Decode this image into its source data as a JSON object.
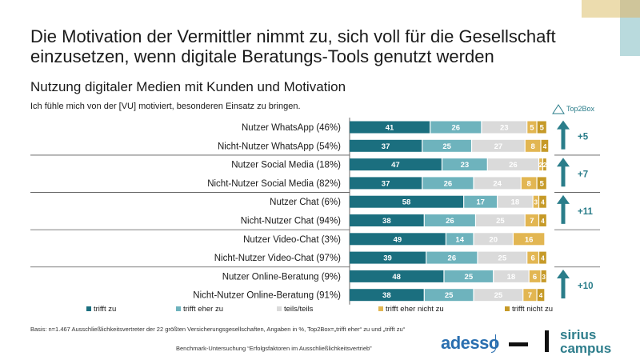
{
  "title": "Die Motivation der Vermittler nimmt zu, sich voll für die Gesellschaft einzusetzen, wenn digitale Beratungs-Tools genutzt werden",
  "subtitle": "Nutzung digitaler Medien mit Kunden und Motivation",
  "question": "Ich fühle mich von der [VU] motiviert, besonderen Einsatz zu bringen.",
  "top2box_label": "Top2Box",
  "footnote": "Basis: n=1.467 Ausschließlichkeitsvertreter der 22 größten Versicherungsgesellschaften, Angaben in %, Top2Box=„trifft eher“ zu und „trifft zu“",
  "benchmark": "Benchmark-Untersuchung “Erfolgsfaktoren im Ausschließlichkeitsvertrieb”",
  "logos": {
    "adesso": "adesso",
    "sirius_line1": "sirius",
    "sirius_line2": "campus"
  },
  "colors": {
    "trifft_zu": "#1b6f7f",
    "trifft_eher_zu": "#6eb3bd",
    "teils": "#dadada",
    "eher_nicht": "#e2b652",
    "nicht": "#c69a28",
    "arrow": "#2a7d8a"
  },
  "chart_data": {
    "type": "bar",
    "orientation": "horizontal",
    "stacked": true,
    "categories": [
      "Nutzer WhatsApp (46%)",
      "Nicht-Nutzer WhatsApp (54%)",
      "Nutzer Social Media (18%)",
      "Nicht-Nutzer Social Media (82%)",
      "Nutzer Chat (6%)",
      "Nicht-Nutzer Chat (94%)",
      "Nutzer Video-Chat (3%)",
      "Nicht-Nutzer Video-Chat (97%)",
      "Nutzer Online-Beratung (9%)",
      "Nicht-Nutzer Online-Beratung (91%)"
    ],
    "series": [
      {
        "name": "trifft zu",
        "values": [
          41,
          37,
          47,
          37,
          58,
          38,
          49,
          39,
          48,
          38
        ]
      },
      {
        "name": "trifft eher zu",
        "values": [
          26,
          25,
          23,
          26,
          17,
          26,
          14,
          26,
          25,
          25
        ]
      },
      {
        "name": "teils/teils",
        "values": [
          23,
          27,
          26,
          24,
          18,
          25,
          20,
          25,
          18,
          25
        ]
      },
      {
        "name": "trifft eher nicht zu",
        "values": [
          5,
          8,
          2,
          8,
          3,
          7,
          16,
          6,
          6,
          7
        ]
      },
      {
        "name": "trifft nicht zu",
        "values": [
          5,
          4,
          2,
          5,
          4,
          4,
          0,
          4,
          3,
          4
        ]
      }
    ],
    "xlim": [
      0,
      100
    ],
    "legend_position": "bottom",
    "groups": [
      {
        "rows": [
          0,
          1
        ],
        "top2box_diff": "+5"
      },
      {
        "rows": [
          2,
          3
        ],
        "top2box_diff": "+7"
      },
      {
        "rows": [
          4,
          5
        ],
        "top2box_diff": "+11"
      },
      {
        "rows": [
          6,
          7
        ],
        "top2box_diff": ""
      },
      {
        "rows": [
          8,
          9
        ],
        "top2box_diff": "+10"
      }
    ]
  }
}
